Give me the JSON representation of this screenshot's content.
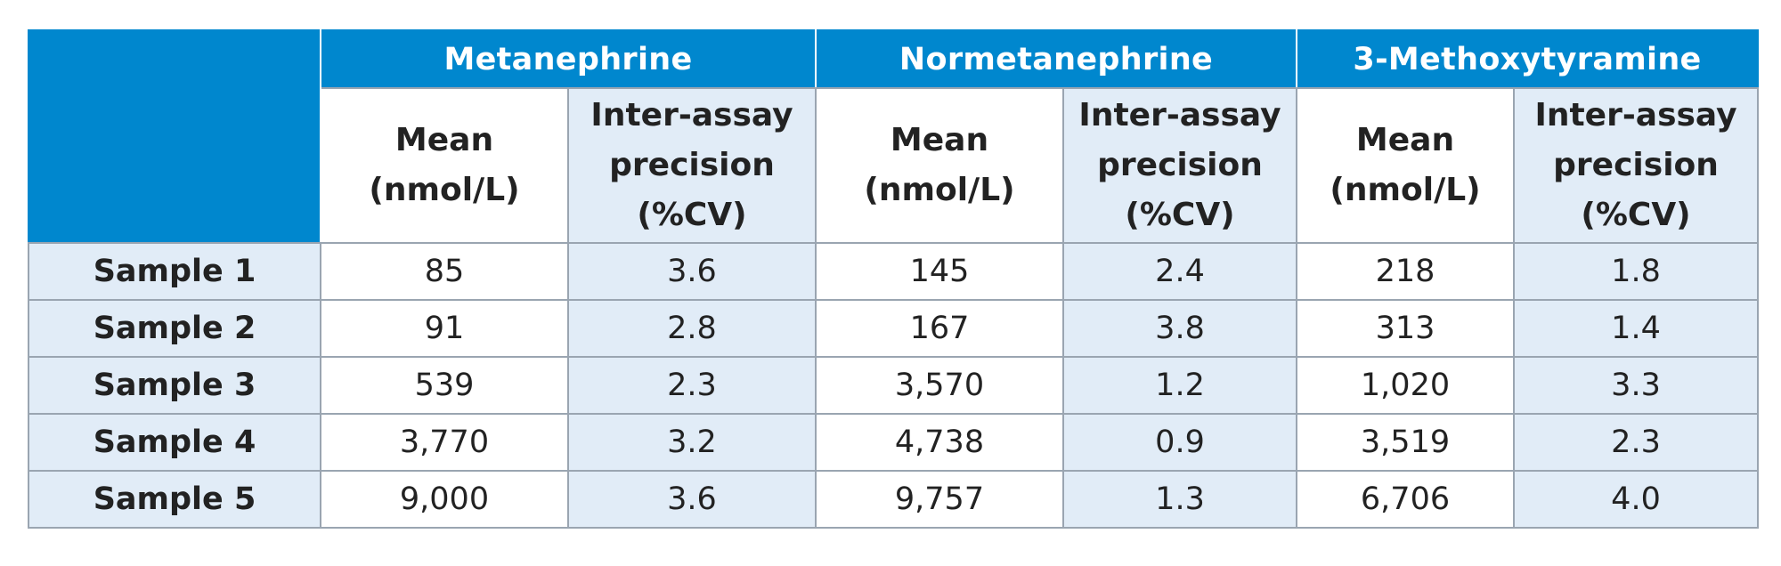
{
  "groups": [
    "Metanephrine",
    "Normetanephrine",
    "3-Methoxytyramine"
  ],
  "subheaders": {
    "mean": [
      "Mean",
      "(nmol/L)"
    ],
    "precision": [
      "Inter-assay",
      "precision",
      "(%CV)"
    ]
  },
  "rows": [
    {
      "label": "Sample 1",
      "values": [
        "85",
        "3.6",
        "145",
        "2.4",
        "218",
        "1.8"
      ]
    },
    {
      "label": "Sample 2",
      "values": [
        "91",
        "2.8",
        "167",
        "3.8",
        "313",
        "1.4"
      ]
    },
    {
      "label": "Sample 3",
      "values": [
        "539",
        "2.3",
        "3,570",
        "1.2",
        "1,020",
        "3.3"
      ]
    },
    {
      "label": "Sample 4",
      "values": [
        "3,770",
        "3.2",
        "4,738",
        "0.9",
        "3,519",
        "2.3"
      ]
    },
    {
      "label": "Sample 5",
      "values": [
        "9,000",
        "3.6",
        "9,757",
        "1.3",
        "6,706",
        "4.0"
      ]
    }
  ],
  "colors": {
    "header_blue": "#0087ce",
    "light_blue": "#e1ecf7",
    "border": "#9aa5b1"
  }
}
